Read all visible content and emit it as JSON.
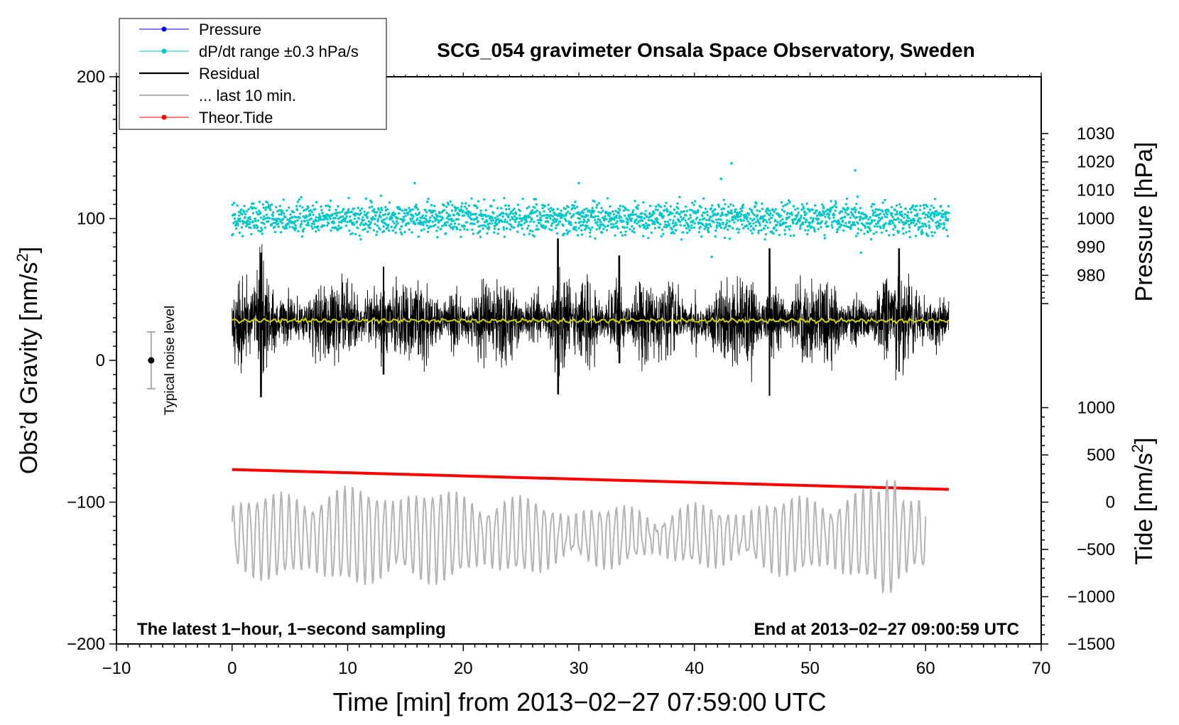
{
  "chart_data": {
    "type": "line",
    "title": "SCG_054 gravimeter Onsala Space Observatory, Sweden",
    "xlabel": "Time [min] from 2013−02−27 07:59:00 UTC",
    "ylabel_main": "Obs’d Gravity [nm/s",
    "ylabel_main_sup": "2",
    "ylabel_main_end": "]",
    "ylabel_pressure": "Pressure [hPa]",
    "ylabel_tide": "Tide [nm/s",
    "ylabel_tide_sup": "2",
    "ylabel_tide_end": "]",
    "xlim": [
      -10,
      70
    ],
    "ylim": [
      -200,
      200
    ],
    "pressure_lim": [
      970,
      1030
    ],
    "tide_lim": [
      -1500,
      1500
    ],
    "x_ticks": [
      "−10",
      "0",
      "10",
      "20",
      "30",
      "40",
      "50",
      "60",
      "70"
    ],
    "x_tick_values": [
      -10,
      0,
      10,
      20,
      30,
      40,
      50,
      60,
      70
    ],
    "y_ticks": [
      "200",
      "100",
      "0",
      "−100",
      "−200"
    ],
    "y_tick_values": [
      200,
      100,
      0,
      -100,
      -200
    ],
    "pressure_ticks": [
      "1030",
      "1020",
      "1010",
      "1000",
      "990",
      "980"
    ],
    "pressure_tick_values": [
      1030,
      1020,
      1010,
      1000,
      990,
      980
    ],
    "tide_ticks": [
      "1000",
      "500",
      "0",
      "−500",
      "−1000",
      "−1500"
    ],
    "tide_tick_values": [
      1000,
      500,
      0,
      -500,
      -1000,
      -1500
    ],
    "legend": [
      {
        "label": "Pressure",
        "color": "#0000ff",
        "style": "line-dot"
      },
      {
        "label": "dP/dt range ±0.3 hPa/s",
        "color": "#00c8c8",
        "style": "line-dot"
      },
      {
        "label": "Residual",
        "color": "#000000",
        "style": "line"
      },
      {
        "label": "... last 10 min.",
        "color": "#b4b4b4",
        "style": "line"
      },
      {
        "label": "Theor.Tide",
        "color": "#ff0000",
        "style": "line-dot"
      }
    ],
    "series": [
      {
        "name": "dP/dt range",
        "color": "#00c8c8",
        "center": 100,
        "spread": 14,
        "x_range": [
          0,
          62
        ]
      },
      {
        "name": "Residual",
        "color": "#000000",
        "center": 28,
        "spread": 25,
        "x_range": [
          0,
          62
        ],
        "bursts": [
          {
            "x": 2.5,
            "max": 76,
            "min": -26
          },
          {
            "x": 13.1,
            "max": 66,
            "min": -10
          },
          {
            "x": 28.2,
            "max": 86,
            "min": -24
          },
          {
            "x": 33.5,
            "max": 74,
            "min": -2
          },
          {
            "x": 46.5,
            "max": 79,
            "min": -25
          },
          {
            "x": 57.7,
            "max": 79,
            "min": -8
          }
        ]
      },
      {
        "name": "Residual smooth",
        "color": "#d2d200",
        "value": 28,
        "x_range": [
          0,
          62
        ]
      },
      {
        "name": "Theor.Tide",
        "color": "#ff0000",
        "start": -77,
        "end": -91,
        "x_range": [
          0,
          62
        ]
      },
      {
        "name": "... last 10 min.",
        "color": "#b4b4b4",
        "center": -124,
        "amplitude": 26,
        "x_range": [
          0,
          60
        ]
      }
    ],
    "noise_bar": {
      "label": "Typical noise level",
      "x": -7,
      "y": 0,
      "low": -20,
      "high": 20
    },
    "annotation_left": "The latest 1−hour, 1−second sampling",
    "annotation_right": "End at 2013−02−27 09:00:59 UTC"
  }
}
